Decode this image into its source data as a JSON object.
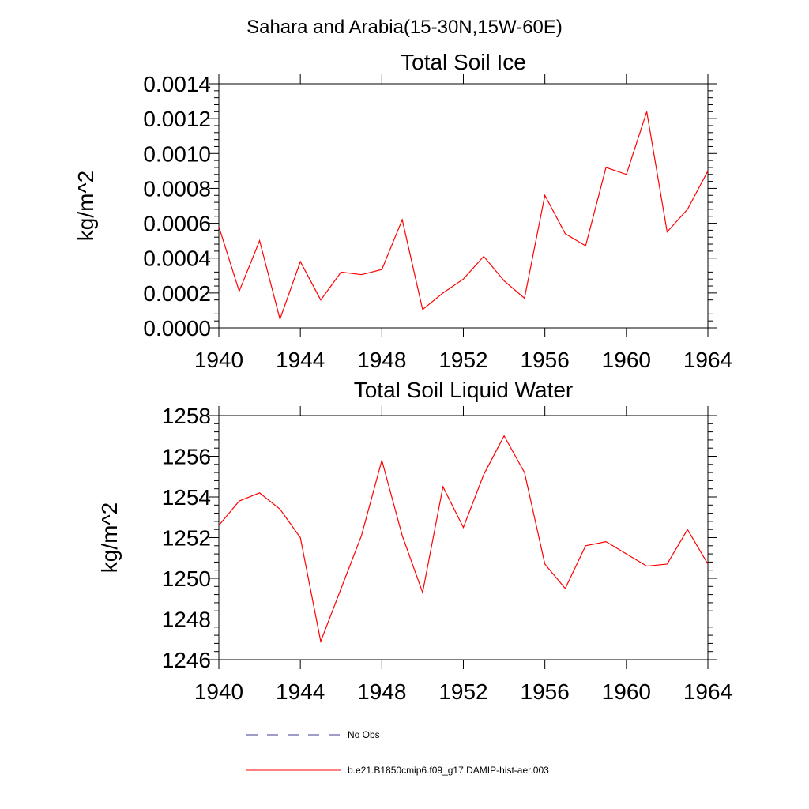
{
  "figure_title": "Sahara and Arabia(15-30N,15W-60E)",
  "colors": {
    "model": "#ff0000",
    "obs": "#3b3b8f",
    "axis": "#000000"
  },
  "legend": {
    "obs_label": "No Obs",
    "model_label": "b.e21.B1850cmip6.f09_g17.DAMIP-hist-aer.003"
  },
  "chart_data": [
    {
      "type": "line",
      "title": "Total Soil Ice",
      "xlabel": "",
      "ylabel": "kg/m^2",
      "xlim": [
        1940,
        1964
      ],
      "ylim": [
        0,
        0.0014
      ],
      "x_ticks": [
        1940,
        1944,
        1948,
        1952,
        1956,
        1960,
        1964
      ],
      "y_ticks": [
        "0.0000",
        "0.0002",
        "0.0004",
        "0.0006",
        "0.0008",
        "0.0010",
        "0.0012",
        "0.0014"
      ],
      "grid": false,
      "x": [
        1940,
        1941,
        1942,
        1943,
        1944,
        1945,
        1946,
        1947,
        1948,
        1949,
        1950,
        1951,
        1952,
        1953,
        1954,
        1955,
        1956,
        1957,
        1958,
        1959,
        1960,
        1961,
        1962,
        1963,
        1964
      ],
      "series": [
        {
          "name": "b.e21.B1850cmip6.f09_g17.DAMIP-hist-aer.003",
          "values": [
            0.00058,
            0.00021,
            0.0005,
            5e-05,
            0.00038,
            0.00016,
            0.00032,
            0.000305,
            0.000335,
            0.00062,
            0.000105,
            0.0002,
            0.00028,
            0.00041,
            0.00027,
            0.00017,
            0.00076,
            0.00054,
            0.00047,
            0.00092,
            0.00088,
            0.00124,
            0.00055,
            0.00068,
            0.0009
          ]
        }
      ]
    },
    {
      "type": "line",
      "title": "Total Soil Liquid Water",
      "xlabel": "",
      "ylabel": "kg/m^2",
      "xlim": [
        1940,
        1964
      ],
      "ylim": [
        1246,
        1258
      ],
      "x_ticks": [
        1940,
        1944,
        1948,
        1952,
        1956,
        1960,
        1964
      ],
      "y_ticks": [
        "1246",
        "1248",
        "1250",
        "1252",
        "1254",
        "1256",
        "1258"
      ],
      "grid": false,
      "x": [
        1940,
        1941,
        1942,
        1943,
        1944,
        1945,
        1946,
        1947,
        1948,
        1949,
        1950,
        1951,
        1952,
        1953,
        1954,
        1955,
        1956,
        1957,
        1958,
        1959,
        1960,
        1961,
        1962,
        1963,
        1964
      ],
      "series": [
        {
          "name": "b.e21.B1850cmip6.f09_g17.DAMIP-hist-aer.003",
          "values": [
            1252.6,
            1253.8,
            1254.2,
            1253.4,
            1252.0,
            1246.9,
            1249.5,
            1252.1,
            1255.8,
            1252.1,
            1249.3,
            1254.5,
            1252.5,
            1255.1,
            1257.0,
            1255.2,
            1250.7,
            1249.5,
            1251.6,
            1251.8,
            1251.2,
            1250.6,
            1250.7,
            1252.4,
            1250.7
          ]
        }
      ]
    }
  ]
}
